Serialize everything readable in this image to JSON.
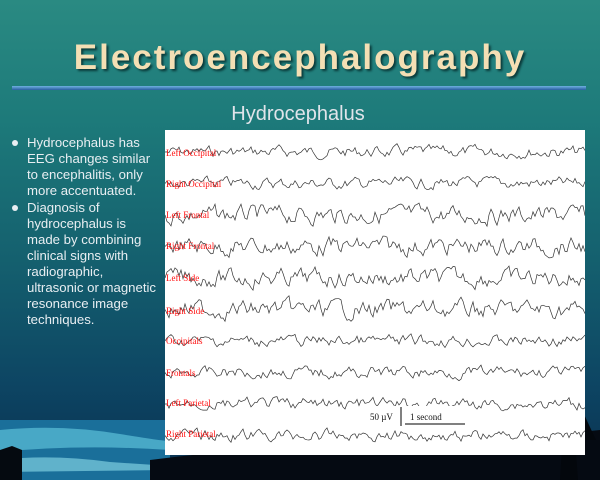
{
  "title": "Electroencephalography",
  "subtitle": "Hydrocephalus",
  "bullets": [
    "Hydrocephalus has EEG changes similar to encephalitis, only more accentuated.",
    "Diagnosis of hydrocephalus is made by combining clinical signs with radiographic, ultrasonic or magnetic resonance image techniques."
  ],
  "eeg": {
    "leads": [
      "Left Occipital",
      "Right Occipital",
      "Left Frontal",
      "Right Frontal",
      "Left Side",
      "Right Side",
      "Occipitals",
      "Frontals",
      "Left Parietal",
      "Right Parietal"
    ],
    "scale_amplitude": "50 µV",
    "scale_time": "1 second"
  },
  "colors": {
    "title": "#f4dfb4",
    "lead_labels": "#ff1010",
    "background_top": "#2a8a82",
    "background_bottom": "#0a3050"
  }
}
